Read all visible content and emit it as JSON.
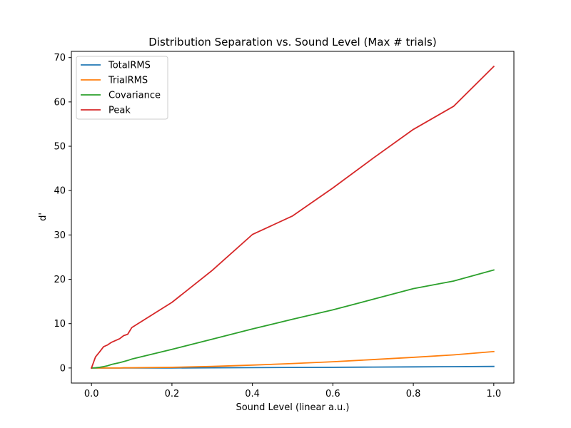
{
  "chart_data": {
    "type": "line",
    "title": "Distribution Separation vs. Sound Level (Max # trials)",
    "xlabel": "Sound Level (linear a.u.)",
    "ylabel": "d'",
    "xlim": [
      -0.05,
      1.05
    ],
    "ylim": [
      -3.4,
      71.4
    ],
    "xticks": [
      0.0,
      0.2,
      0.4,
      0.6,
      0.8,
      1.0
    ],
    "xtick_labels": [
      "0.0",
      "0.2",
      "0.4",
      "0.6",
      "0.8",
      "1.0"
    ],
    "yticks": [
      0,
      10,
      20,
      30,
      40,
      50,
      60,
      70
    ],
    "ytick_labels": [
      "0",
      "10",
      "20",
      "30",
      "40",
      "50",
      "60",
      "70"
    ],
    "grid": false,
    "legend_position": "top-left",
    "series": [
      {
        "name": "TotalRMS",
        "color": "#1f77b4",
        "x": [
          0.0,
          0.01,
          0.02,
          0.03,
          0.04,
          0.05,
          0.06,
          0.07,
          0.08,
          0.09,
          0.1,
          0.2,
          0.3,
          0.4,
          0.5,
          0.6,
          0.7,
          0.8,
          0.9,
          1.0
        ],
        "y": [
          0.0,
          0.0,
          0.0,
          0.0,
          0.0,
          0.0,
          0.0,
          0.0,
          0.0,
          0.0,
          0.0,
          0.0,
          0.05,
          0.08,
          0.12,
          0.15,
          0.2,
          0.25,
          0.3,
          0.35
        ]
      },
      {
        "name": "TrialRMS",
        "color": "#ff7f0e",
        "x": [
          0.0,
          0.01,
          0.02,
          0.03,
          0.04,
          0.05,
          0.06,
          0.07,
          0.08,
          0.09,
          0.1,
          0.2,
          0.3,
          0.4,
          0.5,
          0.6,
          0.7,
          0.8,
          0.9,
          1.0
        ],
        "y": [
          0.0,
          0.0,
          0.0,
          0.0,
          0.0,
          0.0,
          0.0,
          0.0,
          0.05,
          0.05,
          0.05,
          0.15,
          0.35,
          0.65,
          1.0,
          1.4,
          1.9,
          2.4,
          2.95,
          3.7
        ]
      },
      {
        "name": "Covariance",
        "color": "#2ca02c",
        "x": [
          0.0,
          0.01,
          0.02,
          0.03,
          0.04,
          0.05,
          0.06,
          0.07,
          0.08,
          0.09,
          0.1,
          0.2,
          0.3,
          0.4,
          0.5,
          0.6,
          0.7,
          0.8,
          0.9,
          1.0
        ],
        "y": [
          0.0,
          0.05,
          0.15,
          0.3,
          0.5,
          0.8,
          1.0,
          1.2,
          1.45,
          1.7,
          2.0,
          4.2,
          6.5,
          8.8,
          11.0,
          13.1,
          15.5,
          17.9,
          19.6,
          22.1
        ]
      },
      {
        "name": "Peak",
        "color": "#d62728",
        "x": [
          0.0,
          0.01,
          0.02,
          0.03,
          0.04,
          0.05,
          0.06,
          0.07,
          0.08,
          0.09,
          0.1,
          0.2,
          0.3,
          0.4,
          0.5,
          0.6,
          0.7,
          0.8,
          0.9,
          1.0
        ],
        "y": [
          0.0,
          2.5,
          3.6,
          4.8,
          5.2,
          5.8,
          6.2,
          6.6,
          7.3,
          7.6,
          9.1,
          14.8,
          22.0,
          30.1,
          34.3,
          40.6,
          47.3,
          53.8,
          59.0,
          68.0
        ]
      }
    ]
  }
}
